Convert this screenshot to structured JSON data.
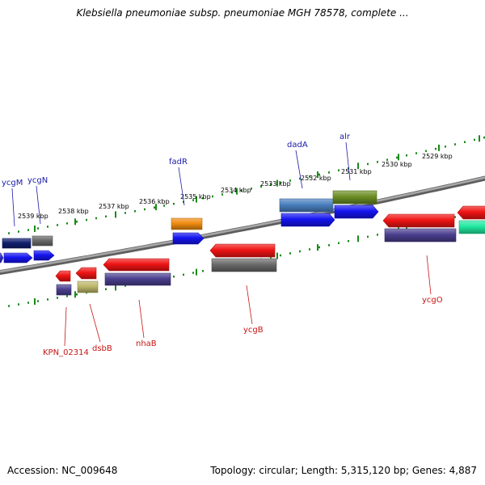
{
  "title": "Klebsiella pneumoniae subsp. pneumoniae MGH 78578, complete ...",
  "footer": {
    "accession": "Accession: NC_009648",
    "topology": "Topology: circular; Length: 5,315,120 bp; Genes: 4,887"
  },
  "colors": {
    "backbone": "#8c8c8c",
    "tick": "#1a8a1a",
    "forward_label": "#1a1aa8",
    "reverse_label": "#c81414"
  },
  "kbp_labels": [
    "2539 kbp",
    "2538 kbp",
    "2537 kbp",
    "2536 kbp",
    "2535 kbp",
    "2534 kbp",
    "2533 kbp",
    "2532 kbp",
    "2531 kbp",
    "2530 kbp",
    "2529 kbp"
  ],
  "forward_genes": [
    {
      "id": "g1",
      "label": "",
      "color": "#3030c8",
      "row": 1
    },
    {
      "id": "g2",
      "label": "ycgM",
      "color": "#111f6e",
      "row": 2
    },
    {
      "id": "g3",
      "label": "",
      "color": "#1414f0",
      "row": 1
    },
    {
      "id": "g4",
      "label": "ycgN",
      "color": "#6a6a6a",
      "row": 2
    },
    {
      "id": "g5",
      "label": "",
      "color": "#1414f0",
      "row": 1
    },
    {
      "id": "g6",
      "label": "fadR",
      "color": "#f08c10",
      "row": 2
    },
    {
      "id": "g7",
      "label": "",
      "color": "#1414f0",
      "row": 1
    },
    {
      "id": "g8",
      "label": "dadA",
      "color": "#4a7fbf",
      "row": 2
    },
    {
      "id": "g9",
      "label": "",
      "color": "#1414f0",
      "row": 1
    },
    {
      "id": "g10",
      "label": "alr",
      "color": "#6b8e23",
      "row": 2
    },
    {
      "id": "g11",
      "label": "",
      "color": "#1414f0",
      "row": 1
    }
  ],
  "reverse_genes": [
    {
      "id": "r1",
      "label": "KPN_02314",
      "color": "#f01414",
      "row": 1
    },
    {
      "id": "r2",
      "label": "",
      "color": "#4a3f8f",
      "row": 2
    },
    {
      "id": "r3",
      "label": "dsbB",
      "color": "#f01414",
      "row": 1
    },
    {
      "id": "r4",
      "label": "",
      "color": "#bdb76b",
      "row": 2
    },
    {
      "id": "r5",
      "label": "nhaB",
      "color": "#f01414",
      "row": 1
    },
    {
      "id": "r6",
      "label": "",
      "color": "#4a3f8f",
      "row": 2
    },
    {
      "id": "r7",
      "label": "ycgB",
      "color": "#f01414",
      "row": 1
    },
    {
      "id": "r8",
      "label": "",
      "color": "#6a6a6a",
      "row": 2
    },
    {
      "id": "r9",
      "label": "ycgO",
      "color": "#f01414",
      "row": 1
    },
    {
      "id": "r10",
      "label": "",
      "color": "#4a3f8f",
      "row": 2
    },
    {
      "id": "r11",
      "label": "",
      "color": "#f01414",
      "row": 1
    },
    {
      "id": "r12",
      "label": "",
      "color": "#20e8a0",
      "row": 2
    }
  ]
}
